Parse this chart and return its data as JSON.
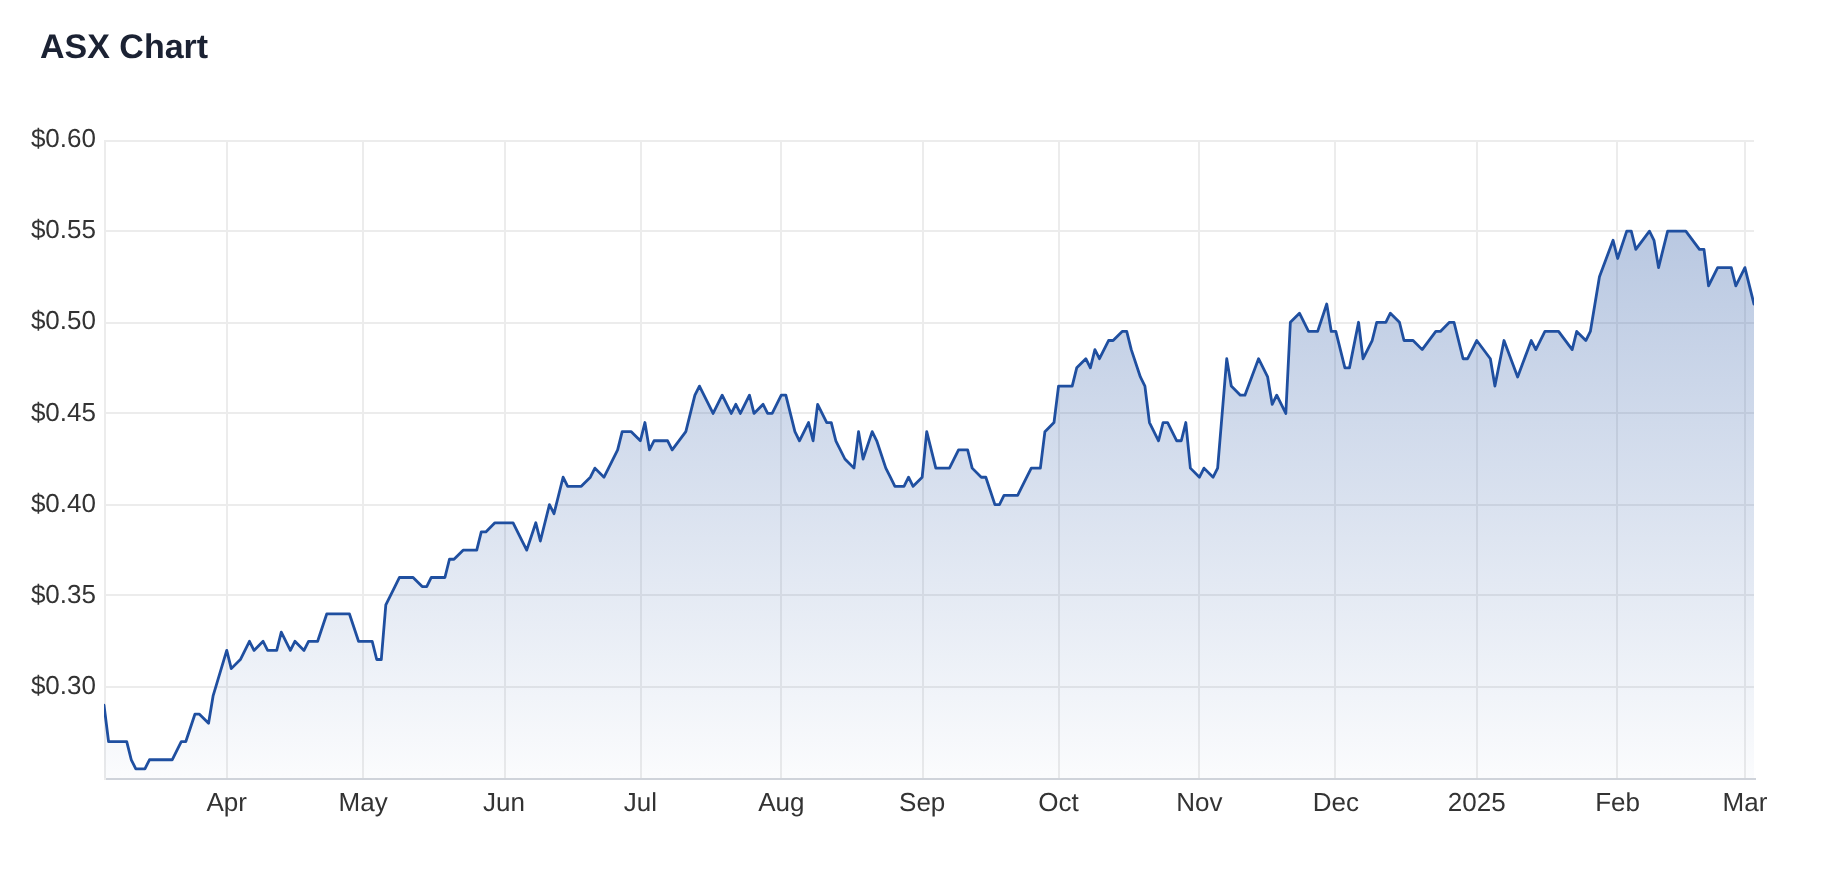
{
  "chart_data": {
    "type": "area",
    "title": "ASX Chart",
    "x": [
      "2024-03-05",
      "2024-03-06",
      "2024-03-10",
      "2024-03-11",
      "2024-03-12",
      "2024-03-14",
      "2024-03-15",
      "2024-03-20",
      "2024-03-22",
      "2024-03-23",
      "2024-03-25",
      "2024-03-26",
      "2024-03-28",
      "2024-03-29",
      "2024-04-01",
      "2024-04-02",
      "2024-04-04",
      "2024-04-06",
      "2024-04-07",
      "2024-04-09",
      "2024-04-10",
      "2024-04-12",
      "2024-04-13",
      "2024-04-15",
      "2024-04-16",
      "2024-04-18",
      "2024-04-19",
      "2024-04-21",
      "2024-04-23",
      "2024-04-28",
      "2024-04-30",
      "2024-05-03",
      "2024-05-04",
      "2024-05-05",
      "2024-05-06",
      "2024-05-08",
      "2024-05-09",
      "2024-05-12",
      "2024-05-14",
      "2024-05-15",
      "2024-05-16",
      "2024-05-19",
      "2024-05-20",
      "2024-05-21",
      "2024-05-23",
      "2024-05-26",
      "2024-05-27",
      "2024-05-28",
      "2024-05-30",
      "2024-06-03",
      "2024-06-05",
      "2024-06-06",
      "2024-06-08",
      "2024-06-09",
      "2024-06-11",
      "2024-06-12",
      "2024-06-14",
      "2024-06-15",
      "2024-06-18",
      "2024-06-20",
      "2024-06-21",
      "2024-06-23",
      "2024-06-24",
      "2024-06-26",
      "2024-06-27",
      "2024-06-29",
      "2024-07-01",
      "2024-07-02",
      "2024-07-03",
      "2024-07-04",
      "2024-07-07",
      "2024-07-08",
      "2024-07-11",
      "2024-07-13",
      "2024-07-14",
      "2024-07-17",
      "2024-07-19",
      "2024-07-21",
      "2024-07-22",
      "2024-07-23",
      "2024-07-25",
      "2024-07-26",
      "2024-07-28",
      "2024-07-29",
      "2024-07-30",
      "2024-08-01",
      "2024-08-02",
      "2024-08-04",
      "2024-08-05",
      "2024-08-07",
      "2024-08-08",
      "2024-08-09",
      "2024-08-11",
      "2024-08-12",
      "2024-08-13",
      "2024-08-15",
      "2024-08-17",
      "2024-08-18",
      "2024-08-19",
      "2024-08-21",
      "2024-08-22",
      "2024-08-24",
      "2024-08-25",
      "2024-08-26",
      "2024-08-28",
      "2024-08-29",
      "2024-08-30",
      "2024-09-01",
      "2024-09-02",
      "2024-09-04",
      "2024-09-07",
      "2024-09-09",
      "2024-09-11",
      "2024-09-12",
      "2024-09-14",
      "2024-09-15",
      "2024-09-17",
      "2024-09-18",
      "2024-09-19",
      "2024-09-22",
      "2024-09-24",
      "2024-09-25",
      "2024-09-27",
      "2024-09-28",
      "2024-09-30",
      "2024-10-01",
      "2024-10-04",
      "2024-10-05",
      "2024-10-07",
      "2024-10-08",
      "2024-10-09",
      "2024-10-10",
      "2024-10-12",
      "2024-10-13",
      "2024-10-15",
      "2024-10-16",
      "2024-10-17",
      "2024-10-19",
      "2024-10-20",
      "2024-10-21",
      "2024-10-23",
      "2024-10-24",
      "2024-10-25",
      "2024-10-27",
      "2024-10-28",
      "2024-10-29",
      "2024-10-30",
      "2024-11-01",
      "2024-11-02",
      "2024-11-04",
      "2024-11-05",
      "2024-11-07",
      "2024-11-08",
      "2024-11-10",
      "2024-11-11",
      "2024-11-14",
      "2024-11-16",
      "2024-11-17",
      "2024-11-18",
      "2024-11-20",
      "2024-11-21",
      "2024-11-23",
      "2024-11-25",
      "2024-11-27",
      "2024-11-29",
      "2024-11-30",
      "2024-12-01",
      "2024-12-03",
      "2024-12-04",
      "2024-12-06",
      "2024-12-07",
      "2024-12-09",
      "2024-12-10",
      "2024-12-12",
      "2024-12-13",
      "2024-12-15",
      "2024-12-16",
      "2024-12-18",
      "2024-12-20",
      "2024-12-23",
      "2024-12-24",
      "2024-12-26",
      "2024-12-27",
      "2024-12-29",
      "2024-12-30",
      "2025-01-01",
      "2025-01-04",
      "2025-01-05",
      "2025-01-07",
      "2025-01-10",
      "2025-01-13",
      "2025-01-14",
      "2025-01-16",
      "2025-01-19",
      "2025-01-22",
      "2025-01-23",
      "2025-01-25",
      "2025-01-26",
      "2025-01-28",
      "2025-01-31",
      "2025-02-01",
      "2025-02-03",
      "2025-02-04",
      "2025-02-05",
      "2025-02-08",
      "2025-02-09",
      "2025-02-10",
      "2025-02-12",
      "2025-02-16",
      "2025-02-19",
      "2025-02-20",
      "2025-02-21",
      "2025-02-23",
      "2025-02-26",
      "2025-02-27",
      "2025-03-01",
      "2025-03-03"
    ],
    "series": [
      {
        "color": "#1f4fa0",
        "values": [
          0.29,
          0.27,
          0.27,
          0.26,
          0.255,
          0.255,
          0.26,
          0.26,
          0.27,
          0.27,
          0.285,
          0.285,
          0.28,
          0.295,
          0.32,
          0.31,
          0.315,
          0.325,
          0.32,
          0.325,
          0.32,
          0.32,
          0.33,
          0.32,
          0.325,
          0.32,
          0.325,
          0.325,
          0.34,
          0.34,
          0.325,
          0.325,
          0.315,
          0.315,
          0.345,
          0.355,
          0.36,
          0.36,
          0.355,
          0.355,
          0.36,
          0.36,
          0.37,
          0.37,
          0.375,
          0.375,
          0.385,
          0.385,
          0.39,
          0.39,
          0.38,
          0.375,
          0.39,
          0.38,
          0.4,
          0.395,
          0.415,
          0.41,
          0.41,
          0.415,
          0.42,
          0.415,
          0.42,
          0.43,
          0.44,
          0.44,
          0.435,
          0.445,
          0.43,
          0.435,
          0.435,
          0.43,
          0.44,
          0.46,
          0.465,
          0.45,
          0.46,
          0.45,
          0.455,
          0.45,
          0.46,
          0.45,
          0.455,
          0.45,
          0.45,
          0.46,
          0.46,
          0.44,
          0.435,
          0.445,
          0.435,
          0.455,
          0.445,
          0.445,
          0.435,
          0.425,
          0.42,
          0.44,
          0.425,
          0.44,
          0.435,
          0.42,
          0.415,
          0.41,
          0.41,
          0.415,
          0.41,
          0.415,
          0.44,
          0.42,
          0.42,
          0.43,
          0.43,
          0.42,
          0.415,
          0.415,
          0.4,
          0.4,
          0.405,
          0.405,
          0.415,
          0.42,
          0.42,
          0.44,
          0.445,
          0.465,
          0.465,
          0.475,
          0.48,
          0.475,
          0.485,
          0.48,
          0.49,
          0.49,
          0.495,
          0.495,
          0.485,
          0.47,
          0.465,
          0.445,
          0.435,
          0.445,
          0.445,
          0.435,
          0.435,
          0.445,
          0.42,
          0.415,
          0.42,
          0.415,
          0.42,
          0.48,
          0.465,
          0.46,
          0.46,
          0.48,
          0.47,
          0.455,
          0.46,
          0.45,
          0.5,
          0.505,
          0.495,
          0.495,
          0.51,
          0.495,
          0.495,
          0.475,
          0.475,
          0.5,
          0.48,
          0.49,
          0.5,
          0.5,
          0.505,
          0.5,
          0.49,
          0.49,
          0.485,
          0.495,
          0.495,
          0.5,
          0.5,
          0.48,
          0.48,
          0.49,
          0.48,
          0.465,
          0.49,
          0.47,
          0.49,
          0.485,
          0.495,
          0.495,
          0.485,
          0.495,
          0.49,
          0.495,
          0.525,
          0.545,
          0.535,
          0.55,
          0.55,
          0.54,
          0.55,
          0.545,
          0.53,
          0.55,
          0.55,
          0.54,
          0.54,
          0.52,
          0.53,
          0.53,
          0.52,
          0.53,
          0.51
        ]
      }
    ],
    "xlim": [
      "2024-03-05",
      "2025-03-03"
    ],
    "xticks": [
      {
        "value": "2024-04-01",
        "label": "Apr"
      },
      {
        "value": "2024-05-01",
        "label": "May"
      },
      {
        "value": "2024-06-01",
        "label": "Jun"
      },
      {
        "value": "2024-07-01",
        "label": "Jul"
      },
      {
        "value": "2024-08-01",
        "label": "Aug"
      },
      {
        "value": "2024-09-01",
        "label": "Sep"
      },
      {
        "value": "2024-10-01",
        "label": "Oct"
      },
      {
        "value": "2024-11-01",
        "label": "Nov"
      },
      {
        "value": "2024-12-01",
        "label": "Dec"
      },
      {
        "value": "2025-01-01",
        "label": "2025"
      },
      {
        "value": "2025-02-01",
        "label": "Feb"
      },
      {
        "value": "2025-03-01",
        "label": "Mar"
      }
    ],
    "ylim": [
      0.25,
      0.6
    ],
    "yticks": [
      {
        "value": 0.3,
        "label": "$0.30"
      },
      {
        "value": 0.35,
        "label": "$0.35"
      },
      {
        "value": 0.4,
        "label": "$0.40"
      },
      {
        "value": 0.45,
        "label": "$0.45"
      },
      {
        "value": 0.5,
        "label": "$0.50"
      },
      {
        "value": 0.55,
        "label": "$0.55"
      },
      {
        "value": 0.6,
        "label": "$0.60"
      }
    ],
    "grid": true,
    "marker": "none",
    "line_style": "solid"
  }
}
